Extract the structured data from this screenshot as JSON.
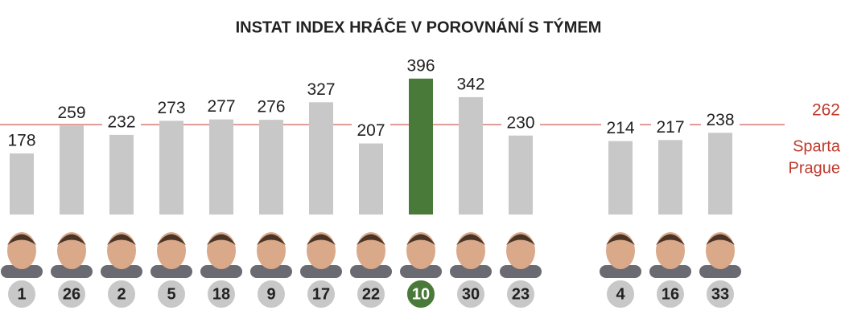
{
  "chart_data": {
    "type": "bar",
    "title": "INSTAT INDEX HRÁČE V POROVNÁNÍ S TÝMEM",
    "categories": [
      "1",
      "26",
      "2",
      "5",
      "18",
      "9",
      "17",
      "22",
      "10",
      "30",
      "23",
      null,
      "4",
      "16",
      "33"
    ],
    "values": [
      178,
      259,
      232,
      273,
      277,
      276,
      327,
      207,
      396,
      342,
      230,
      null,
      214,
      217,
      238
    ],
    "colors": [
      "#c8c8c8",
      "#c8c8c8",
      "#c8c8c8",
      "#c8c8c8",
      "#c8c8c8",
      "#c8c8c8",
      "#c8c8c8",
      "#c8c8c8",
      "#4a7a3a",
      "#c8c8c8",
      "#c8c8c8",
      null,
      "#c8c8c8",
      "#c8c8c8",
      "#c8c8c8"
    ],
    "ylim": [
      0,
      625
    ],
    "reference_line": {
      "value": 262,
      "label_lines": [
        "Sparta",
        "Prague"
      ],
      "color": "#c0392b"
    }
  }
}
